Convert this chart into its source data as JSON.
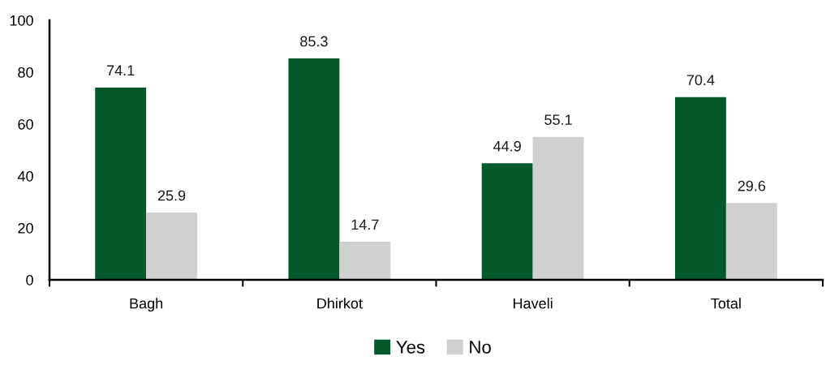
{
  "chart_data": {
    "type": "bar",
    "categories": [
      "Bagh",
      "Dhirkot",
      "Haveli",
      "Total"
    ],
    "series": [
      {
        "name": "Yes",
        "color": "#03582c",
        "values": [
          74.1,
          85.3,
          44.9,
          70.4
        ]
      },
      {
        "name": "No",
        "color": "#d0d0d0",
        "values": [
          25.9,
          14.7,
          55.1,
          29.6
        ]
      }
    ],
    "ylim": [
      0,
      100
    ],
    "yticks": [
      0,
      20,
      40,
      60,
      80,
      100
    ],
    "data_labels": true,
    "grid": false,
    "legend": "bottom"
  }
}
